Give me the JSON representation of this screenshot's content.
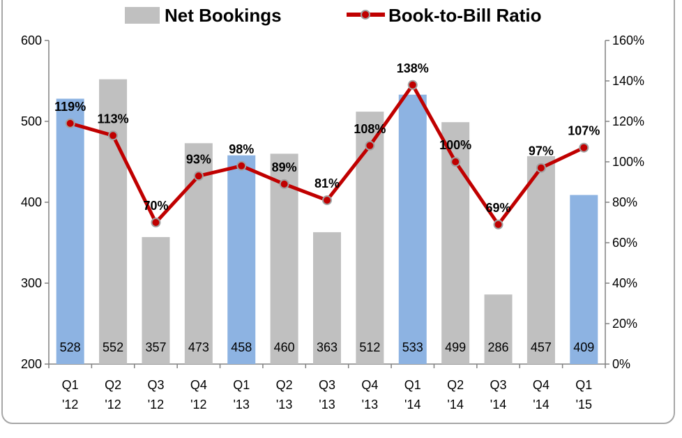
{
  "chart_data": {
    "type": "bar",
    "legend": {
      "position": "top",
      "bars_label": "Net Bookings",
      "line_label": "Book-to-Bill Ratio"
    },
    "categories": [
      [
        "Q1",
        "'12"
      ],
      [
        "Q2",
        "'12"
      ],
      [
        "Q3",
        "'12"
      ],
      [
        "Q4",
        "'12"
      ],
      [
        "Q1",
        "'13"
      ],
      [
        "Q2",
        "'13"
      ],
      [
        "Q3",
        "'13"
      ],
      [
        "Q4",
        "'13"
      ],
      [
        "Q1",
        "'14"
      ],
      [
        "Q2",
        "'14"
      ],
      [
        "Q3",
        "'14"
      ],
      [
        "Q4",
        "'14"
      ],
      [
        "Q1",
        "'15"
      ]
    ],
    "series": [
      {
        "name": "Net Bookings",
        "type": "bar",
        "axis": "left",
        "values": [
          528,
          552,
          357,
          473,
          458,
          460,
          363,
          512,
          533,
          499,
          286,
          457,
          409
        ],
        "labels": [
          "528",
          "552",
          "357",
          "473",
          "458",
          "460",
          "363",
          "512",
          "533",
          "499",
          "286",
          "457",
          "409"
        ],
        "highlight": [
          true,
          false,
          false,
          false,
          true,
          false,
          false,
          false,
          true,
          false,
          false,
          false,
          true
        ]
      },
      {
        "name": "Book-to-Bill Ratio",
        "type": "line",
        "axis": "right",
        "values": [
          119,
          113,
          70,
          93,
          98,
          89,
          81,
          108,
          138,
          100,
          69,
          97,
          107
        ],
        "labels": [
          "119%",
          "113%",
          "70%",
          "93%",
          "98%",
          "89%",
          "81%",
          "108%",
          "138%",
          "100%",
          "69%",
          "97%",
          "107%"
        ]
      }
    ],
    "y_left": {
      "min": 200,
      "max": 600,
      "ticks": [
        "200",
        "300",
        "400",
        "500",
        "600"
      ]
    },
    "y_right": {
      "min": 0,
      "max": 160,
      "ticks": [
        "0%",
        "20%",
        "40%",
        "60%",
        "80%",
        "100%",
        "120%",
        "140%",
        "160%"
      ]
    },
    "colors": {
      "bar_default": "#c0c0c0",
      "bar_highlight": "#8db3e2",
      "line": "#c00000",
      "marker_fill": "#c00000",
      "marker_stroke": "#a0a0a0",
      "axis": "#808080"
    },
    "grid": false
  }
}
